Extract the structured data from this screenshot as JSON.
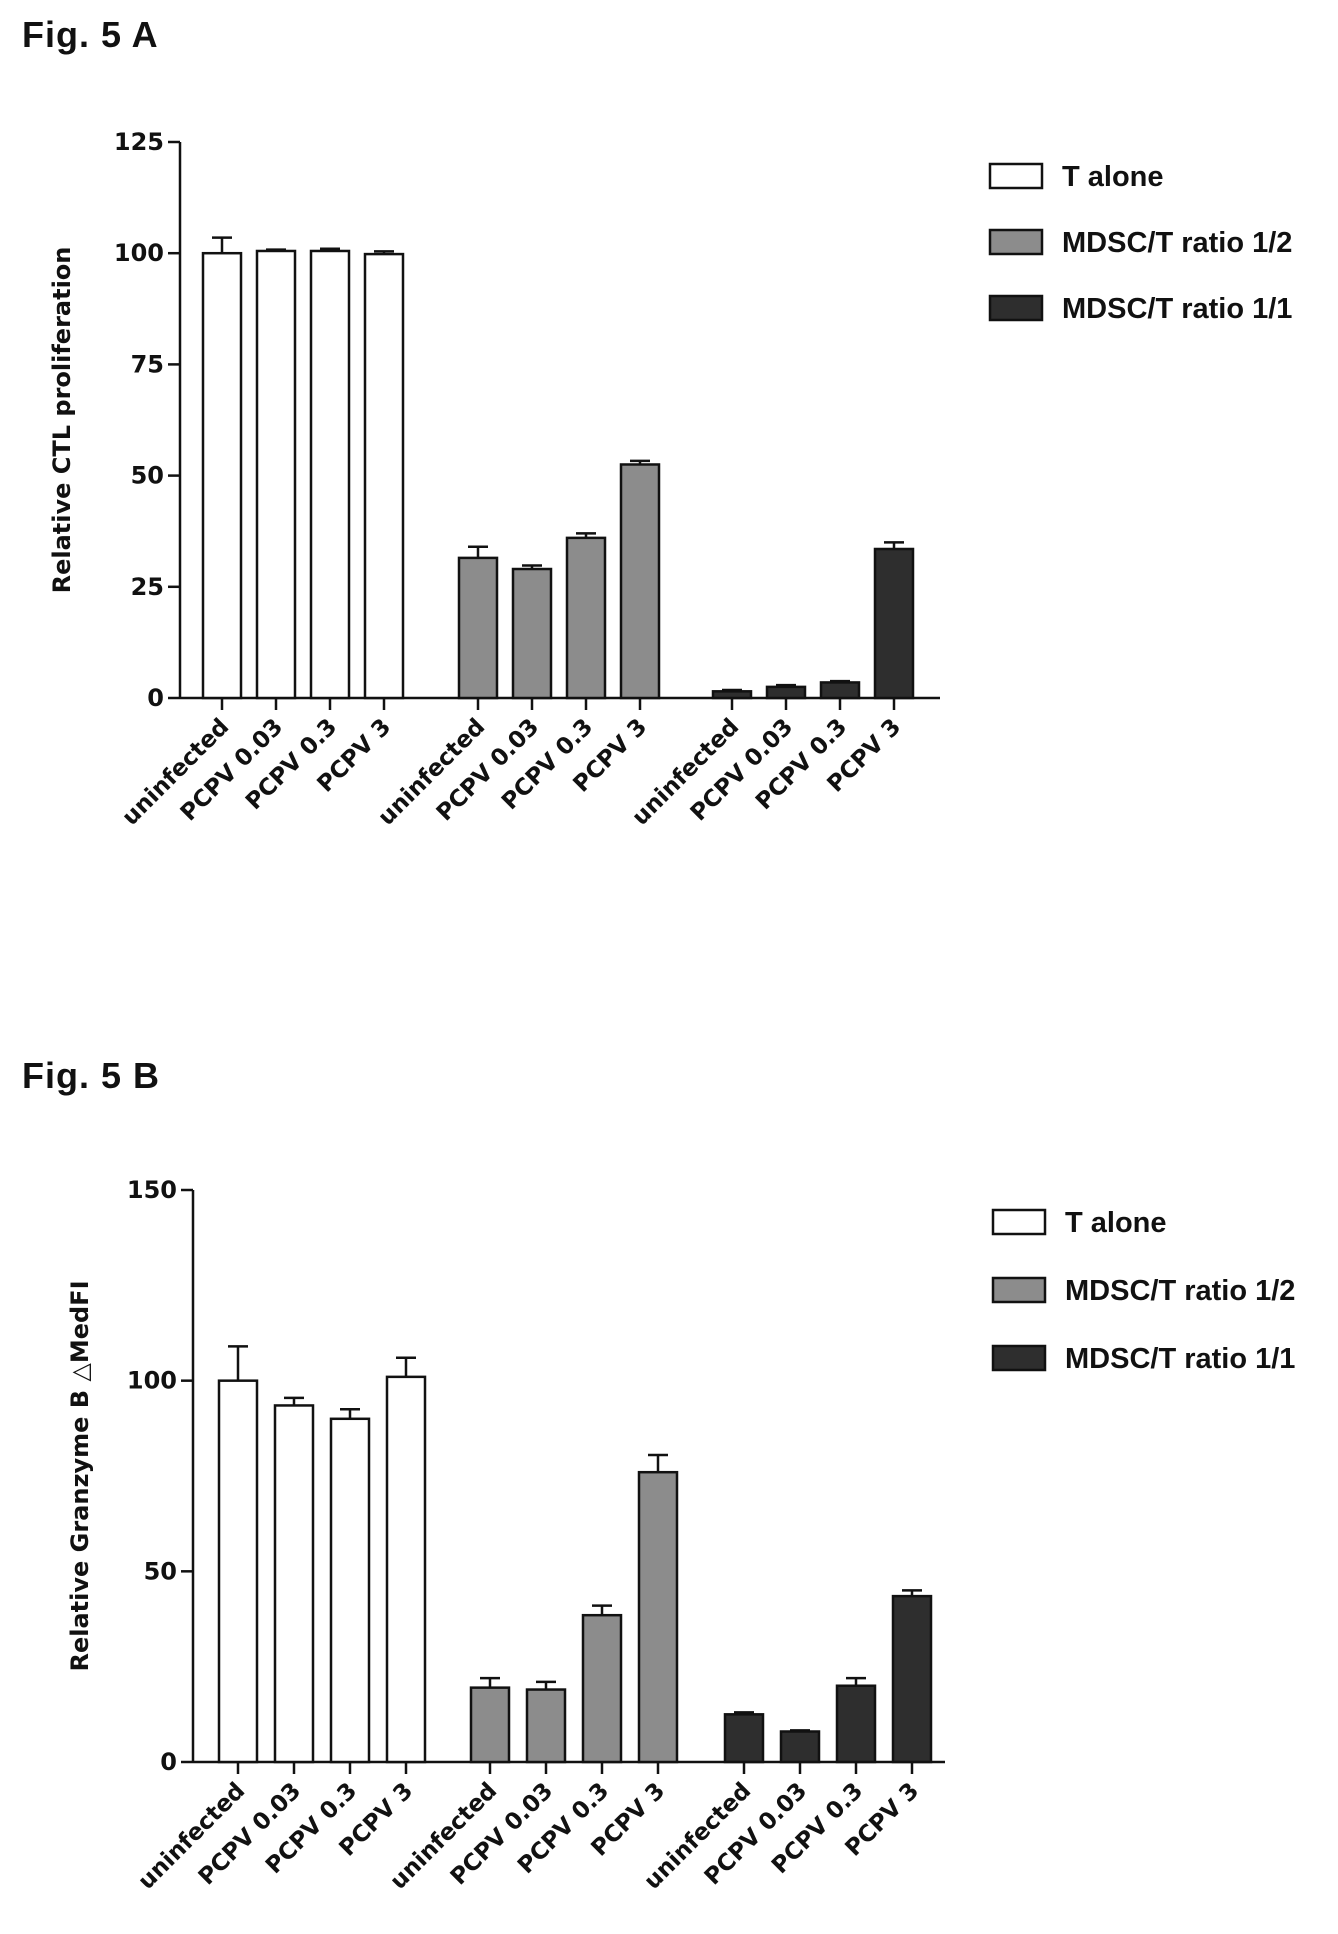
{
  "figures": [
    {
      "label": "Fig. 5 A"
    },
    {
      "label": "Fig. 5 B"
    }
  ],
  "colors": {
    "t_alone": "#ffffff",
    "ratio_1_2": "#8c8c8c",
    "ratio_1_1": "#2e2e2e",
    "axis": "#111111"
  },
  "chart_data": [
    {
      "type": "bar",
      "title": "",
      "xlabel": "",
      "ylabel": "Relative CTL proliferation",
      "ylim": [
        0,
        125
      ],
      "yticks": [
        0,
        25,
        50,
        75,
        100,
        125
      ],
      "categories": [
        "uninfected",
        "PCPV 0.03",
        "PCPV 0.3",
        "PCPV 3"
      ],
      "legend_position": "top-right",
      "grid": false,
      "series": [
        {
          "name": "T alone",
          "values": [
            100,
            100.5,
            100.5,
            99.8
          ],
          "errors": [
            3.5,
            0.3,
            0.5,
            0.6
          ]
        },
        {
          "name": "MDSC/T ratio 1/2",
          "values": [
            31.5,
            29,
            36,
            52.5
          ],
          "errors": [
            2.5,
            0.8,
            1.0,
            0.8
          ]
        },
        {
          "name": "MDSC/T ratio 1/1",
          "values": [
            1.5,
            2.5,
            3.5,
            33.5
          ],
          "errors": [
            0.3,
            0.4,
            0.3,
            1.5
          ]
        }
      ]
    },
    {
      "type": "bar",
      "title": "",
      "xlabel": "",
      "ylabel": "Relative Granzyme B △MedFI",
      "ylim": [
        0,
        150
      ],
      "yticks": [
        0,
        50,
        100,
        150
      ],
      "categories": [
        "uninfected",
        "PCPV 0.03",
        "PCPV 0.3",
        "PCPV 3"
      ],
      "legend_position": "top-right",
      "grid": false,
      "series": [
        {
          "name": "T alone",
          "values": [
            100,
            93.5,
            90,
            101
          ],
          "errors": [
            9,
            2,
            2.5,
            5
          ]
        },
        {
          "name": "MDSC/T ratio 1/2",
          "values": [
            19.5,
            19,
            38.5,
            76
          ],
          "errors": [
            2.5,
            2,
            2.5,
            4.5
          ]
        },
        {
          "name": "MDSC/T ratio 1/1",
          "values": [
            12.5,
            8,
            20,
            43.5
          ],
          "errors": [
            0.5,
            0.3,
            2,
            1.5
          ]
        }
      ]
    }
  ]
}
